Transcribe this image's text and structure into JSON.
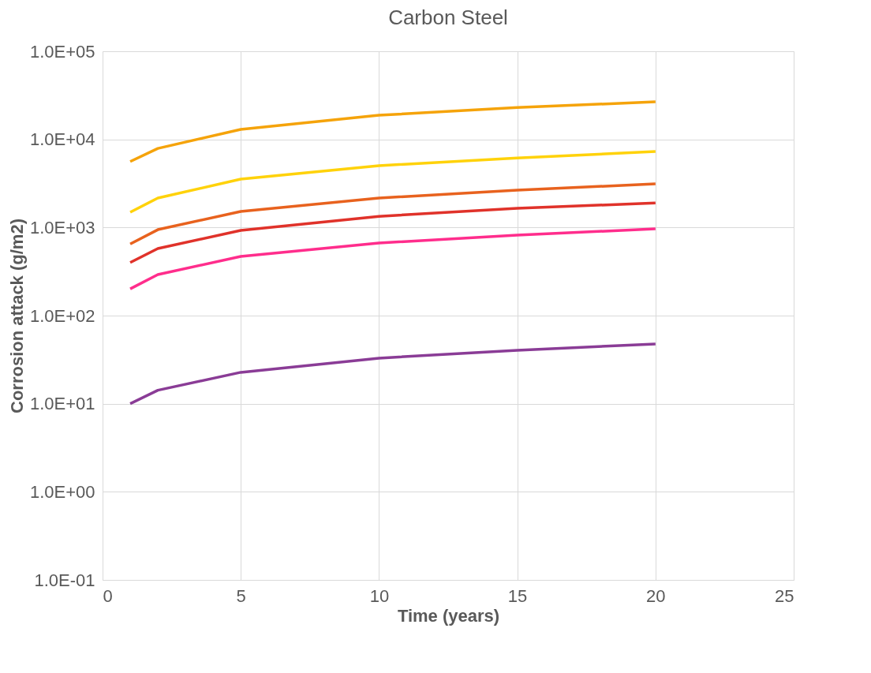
{
  "chart_data": {
    "type": "line",
    "title": "Carbon Steel",
    "xlabel": "Time (years)",
    "ylabel": "Corrosion attack (g/m2)",
    "x": [
      1,
      2,
      5,
      10,
      15,
      20
    ],
    "series": [
      {
        "color": "#f5a30a",
        "values": [
          5600,
          7900,
          13000,
          18800,
          23000,
          26700
        ]
      },
      {
        "color": "#ffd20a",
        "values": [
          1490,
          2160,
          3540,
          5030,
          6150,
          7280
        ]
      },
      {
        "color": "#e8621e",
        "values": [
          650,
          945,
          1520,
          2160,
          2650,
          3130
        ]
      },
      {
        "color": "#e0322a",
        "values": [
          400,
          577,
          927,
          1340,
          1650,
          1900
        ]
      },
      {
        "color": "#ff2d8c",
        "values": [
          201,
          292,
          469,
          666,
          819,
          966
        ]
      },
      {
        "color": "#8a3c96",
        "values": [
          10,
          14.2,
          22.7,
          32.9,
          40.4,
          47.7
        ]
      }
    ],
    "xlim": [
      0,
      25
    ],
    "xticks": [
      0,
      5,
      10,
      15,
      20,
      25
    ],
    "ylim": [
      0.1,
      100000
    ],
    "yticks": [
      {
        "value": 0.1,
        "label": "1.0E-01"
      },
      {
        "value": 1,
        "label": "1.0E+00"
      },
      {
        "value": 10,
        "label": "1.0E+01"
      },
      {
        "value": 100,
        "label": "1.0E+02"
      },
      {
        "value": 1000,
        "label": "1.0E+03"
      },
      {
        "value": 10000,
        "label": "1.0E+04"
      },
      {
        "value": 100000,
        "label": "1.0E+05"
      }
    ],
    "log": "y",
    "grid": true,
    "legend": false,
    "marker": "none",
    "line_style": "solid"
  }
}
